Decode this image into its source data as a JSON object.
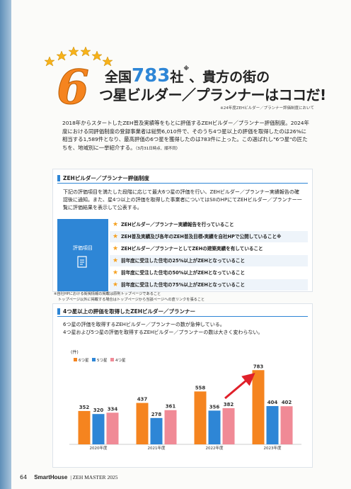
{
  "header": {
    "line1": [
      "全国",
      "783",
      "社",
      "※",
      "、貴方の街の"
    ],
    "big_number": "6",
    "line2": "つ星ビルダー／プランナーはココだ!",
    "note": "※24年度ZEHビルダー／プランナー評価制度において"
  },
  "intro": {
    "text": "2018年からスタートしたZEH普及実績等をもとに評価するZEHビルダー／プランナー評価制度。2024年度における同評価制度の登録事業者は総勢6,010件で、そのうち4つ星以上の評価を取得したのは26%に相当する1,589件となり、最高評価の6つ星を獲得したのは783件に上った。この選ばれし\"6つ星\"の匠たちを、地域別に一挙紹介する。",
    "date_note": "（3月31日時点、順不同）"
  },
  "section1": {
    "title": "ZEHビルダー／プランナー評価制度",
    "body": "下記の評価項目を満たした段階に応じて最大6つ星の評価を行い、ZEHビルダー／プランナー実績報告の確認後に通知。また、星4つ以上の評価を取得した事業者についてはSIIのHPにてZEHビルダー／プランナー一覧に評価結果を表示して公表する。",
    "criteria_label": "評価項目",
    "items": [
      "ZEHビルダー／プランナー実績報告を行っていること",
      "ZEH普及実績及び各年のZEH普及目標・実績を自社HPで公開していること※",
      "ZEHビルダー／プランナーとしてZEHの建築実績を有していること",
      "前年度に受注した住宅の25%以上がZEHとなっていること",
      "前年度に受注した住宅の50%以上がZEHとなっていること",
      "前年度に受注した住宅の75%以上がZEHとなっていること"
    ],
    "footnotes": [
      "※自社HPにおける街掲情報の掲載は原則トップページであること",
      "トップページ以外に掲載する場合はトップページから当該ページへの直リンクを張ること"
    ]
  },
  "section2": {
    "title": "4つ星以上の評価を取得したZEHビルダー／プランナー",
    "body": [
      "6つ星の評価を取得するZEHビルダー／プランナーの数が急伸している。",
      "4つ星および5つ星の評価を取得するZEHビルダー／プランナーの数は大きく変わらない。"
    ]
  },
  "chart_data": {
    "type": "bar",
    "y_label": "(件)",
    "categories": [
      "2020年度",
      "2021年度",
      "2022年度",
      "2023年度"
    ],
    "series": [
      {
        "name": "6つ星",
        "color": "#f5841f",
        "values": [
          352,
          437,
          558,
          783
        ]
      },
      {
        "name": "5つ星",
        "color": "#2e86d6",
        "values": [
          320,
          278,
          356,
          404
        ]
      },
      {
        "name": "4つ星",
        "color": "#f08a96",
        "values": [
          334,
          361,
          382,
          402
        ]
      }
    ],
    "ylim": [
      0,
      800
    ]
  },
  "footer": {
    "page": "64",
    "brand": "SmartHouse",
    "issue": "| ZEH MASTER 2025"
  }
}
